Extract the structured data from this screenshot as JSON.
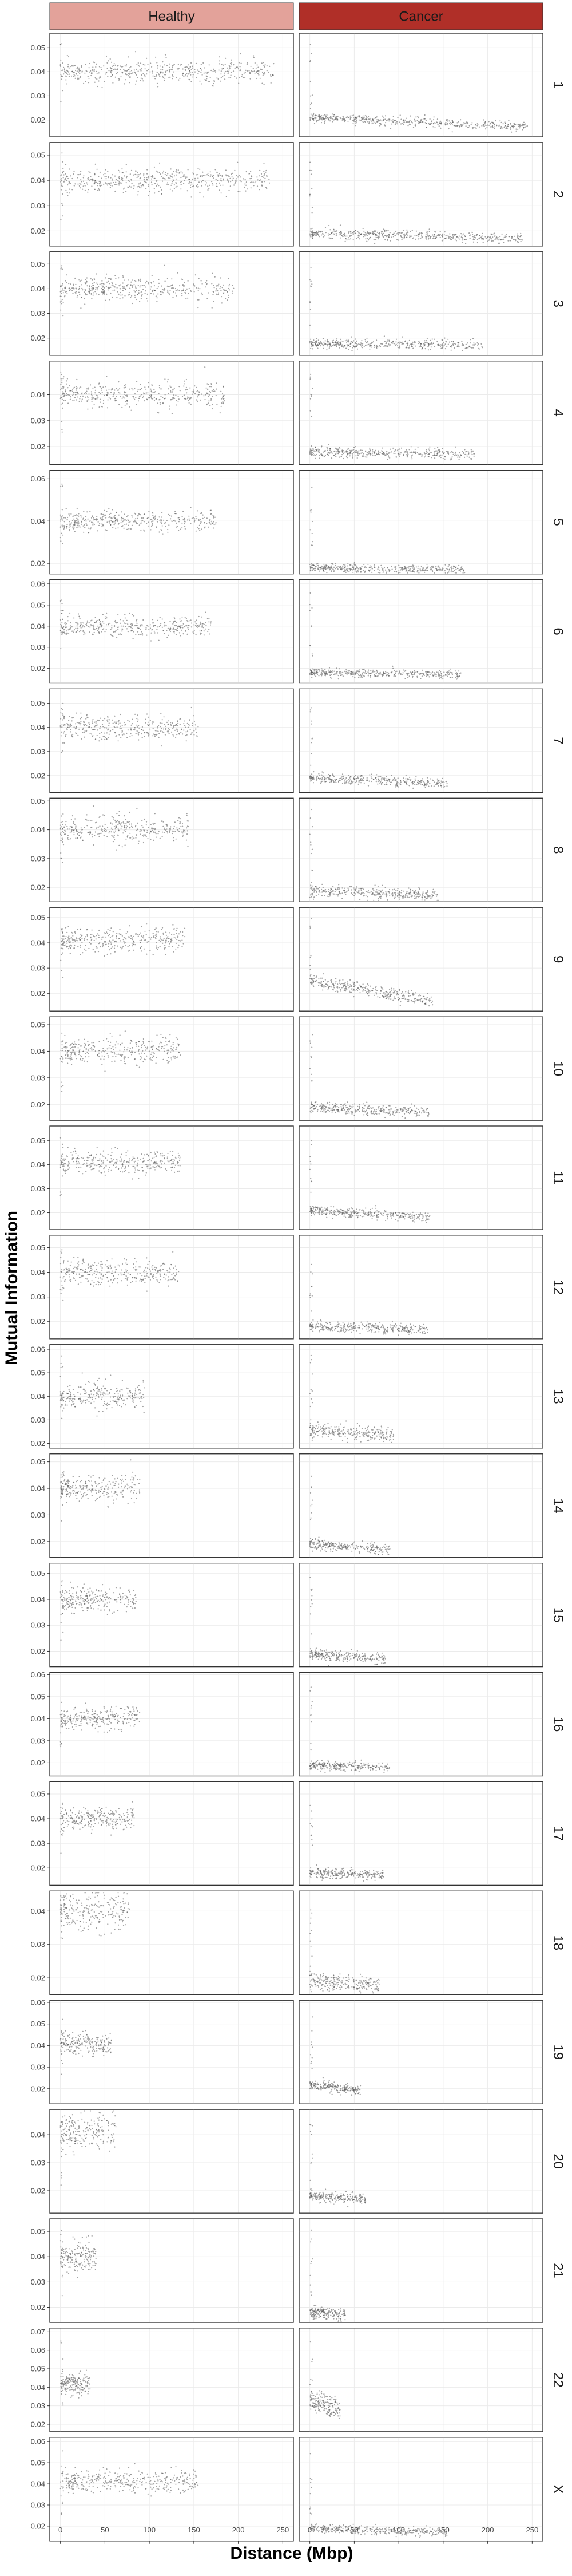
{
  "chart_data": {
    "type": "scatter",
    "xlabel": "Distance (Mbp)",
    "ylabel": "Mutual Information",
    "columns": [
      {
        "name": "Healthy",
        "color": "#e3a29a"
      },
      {
        "name": "Cancer",
        "color": "#b02f28"
      }
    ],
    "xlim": [
      -12,
      262
    ],
    "x_ticks": [
      0,
      50,
      100,
      150,
      200,
      250
    ],
    "point_color": "#555555",
    "grid": true,
    "rows": [
      {
        "label": "1",
        "ylim": [
          0.013,
          0.056
        ],
        "y_ticks": [
          0.02,
          0.03,
          0.04,
          0.05
        ],
        "healthy": {
          "xmax": 240,
          "level": 0.04,
          "spread": 0.0025
        },
        "cancer": {
          "xmax": 245,
          "start": 0.021,
          "end": 0.017,
          "spread": 0.001
        }
      },
      {
        "label": "2",
        "ylim": [
          0.014,
          0.055
        ],
        "y_ticks": [
          0.02,
          0.03,
          0.04,
          0.05
        ],
        "healthy": {
          "xmax": 235,
          "level": 0.04,
          "spread": 0.0025
        },
        "cancer": {
          "xmax": 240,
          "start": 0.019,
          "end": 0.017,
          "spread": 0.001
        }
      },
      {
        "label": "3",
        "ylim": [
          0.013,
          0.055
        ],
        "y_ticks": [
          0.02,
          0.03,
          0.04,
          0.05
        ],
        "healthy": {
          "xmax": 195,
          "level": 0.04,
          "spread": 0.0025
        },
        "cancer": {
          "xmax": 195,
          "start": 0.018,
          "end": 0.017,
          "spread": 0.001
        }
      },
      {
        "label": "4",
        "ylim": [
          0.013,
          0.053
        ],
        "y_ticks": [
          0.02,
          0.03,
          0.04
        ],
        "healthy": {
          "xmax": 185,
          "level": 0.04,
          "spread": 0.0025
        },
        "cancer": {
          "xmax": 185,
          "start": 0.018,
          "end": 0.017,
          "spread": 0.001
        }
      },
      {
        "label": "5",
        "ylim": [
          0.015,
          0.064
        ],
        "y_ticks": [
          0.02,
          0.04,
          0.06
        ],
        "healthy": {
          "xmax": 175,
          "level": 0.04,
          "spread": 0.0025
        },
        "cancer": {
          "xmax": 175,
          "start": 0.018,
          "end": 0.017,
          "spread": 0.001
        }
      },
      {
        "label": "6",
        "ylim": [
          0.013,
          0.062
        ],
        "y_ticks": [
          0.02,
          0.03,
          0.04,
          0.05,
          0.06
        ],
        "healthy": {
          "xmax": 170,
          "level": 0.04,
          "spread": 0.0025
        },
        "cancer": {
          "xmax": 170,
          "start": 0.018,
          "end": 0.017,
          "spread": 0.001
        }
      },
      {
        "label": "7",
        "ylim": [
          0.013,
          0.056
        ],
        "y_ticks": [
          0.02,
          0.03,
          0.04,
          0.05
        ],
        "healthy": {
          "xmax": 155,
          "level": 0.04,
          "spread": 0.0025
        },
        "cancer": {
          "xmax": 155,
          "start": 0.019,
          "end": 0.017,
          "spread": 0.001
        }
      },
      {
        "label": "8",
        "ylim": [
          0.015,
          0.051
        ],
        "y_ticks": [
          0.02,
          0.03,
          0.04,
          0.05
        ],
        "healthy": {
          "xmax": 145,
          "level": 0.04,
          "spread": 0.0025
        },
        "cancer": {
          "xmax": 145,
          "start": 0.019,
          "end": 0.017,
          "spread": 0.001
        }
      },
      {
        "label": "9",
        "ylim": [
          0.013,
          0.054
        ],
        "y_ticks": [
          0.02,
          0.03,
          0.04,
          0.05
        ],
        "healthy": {
          "xmax": 140,
          "level": 0.041,
          "spread": 0.0025
        },
        "cancer": {
          "xmax": 138,
          "start": 0.025,
          "end": 0.017,
          "spread": 0.0013
        }
      },
      {
        "label": "10",
        "ylim": [
          0.014,
          0.053
        ],
        "y_ticks": [
          0.02,
          0.03,
          0.04,
          0.05
        ],
        "healthy": {
          "xmax": 135,
          "level": 0.04,
          "spread": 0.0025
        },
        "cancer": {
          "xmax": 135,
          "start": 0.019,
          "end": 0.017,
          "spread": 0.001
        }
      },
      {
        "label": "11",
        "ylim": [
          0.013,
          0.056
        ],
        "y_ticks": [
          0.02,
          0.03,
          0.04,
          0.05
        ],
        "healthy": {
          "xmax": 135,
          "level": 0.041,
          "spread": 0.0025
        },
        "cancer": {
          "xmax": 135,
          "start": 0.021,
          "end": 0.018,
          "spread": 0.001
        }
      },
      {
        "label": "12",
        "ylim": [
          0.013,
          0.055
        ],
        "y_ticks": [
          0.02,
          0.03,
          0.04,
          0.05
        ],
        "healthy": {
          "xmax": 133,
          "level": 0.04,
          "spread": 0.0025
        },
        "cancer": {
          "xmax": 133,
          "start": 0.018,
          "end": 0.017,
          "spread": 0.001
        }
      },
      {
        "label": "13",
        "ylim": [
          0.018,
          0.062
        ],
        "y_ticks": [
          0.02,
          0.03,
          0.04,
          0.05,
          0.06
        ],
        "healthy": {
          "xmax": 95,
          "level": 0.04,
          "spread": 0.003
        },
        "cancer": {
          "xmax": 95,
          "start": 0.026,
          "end": 0.023,
          "spread": 0.0015
        }
      },
      {
        "label": "14",
        "ylim": [
          0.014,
          0.053
        ],
        "y_ticks": [
          0.02,
          0.03,
          0.04,
          0.05
        ],
        "healthy": {
          "xmax": 90,
          "level": 0.04,
          "spread": 0.0025
        },
        "cancer": {
          "xmax": 90,
          "start": 0.019,
          "end": 0.017,
          "spread": 0.001
        }
      },
      {
        "label": "15",
        "ylim": [
          0.014,
          0.054
        ],
        "y_ticks": [
          0.02,
          0.03,
          0.04,
          0.05
        ],
        "healthy": {
          "xmax": 85,
          "level": 0.04,
          "spread": 0.0025
        },
        "cancer": {
          "xmax": 85,
          "start": 0.019,
          "end": 0.017,
          "spread": 0.001
        }
      },
      {
        "label": "16",
        "ylim": [
          0.014,
          0.061
        ],
        "y_ticks": [
          0.02,
          0.03,
          0.04,
          0.05,
          0.06
        ],
        "healthy": {
          "xmax": 90,
          "level": 0.04,
          "spread": 0.0025
        },
        "cancer": {
          "xmax": 90,
          "start": 0.019,
          "end": 0.018,
          "spread": 0.001
        }
      },
      {
        "label": "17",
        "ylim": [
          0.013,
          0.055
        ],
        "y_ticks": [
          0.02,
          0.03,
          0.04,
          0.05
        ],
        "healthy": {
          "xmax": 83,
          "level": 0.04,
          "spread": 0.0025
        },
        "cancer": {
          "xmax": 83,
          "start": 0.018,
          "end": 0.017,
          "spread": 0.001
        }
      },
      {
        "label": "18",
        "ylim": [
          0.015,
          0.046
        ],
        "y_ticks": [
          0.02,
          0.03,
          0.04
        ],
        "healthy": {
          "xmax": 78,
          "level": 0.04,
          "spread": 0.003
        },
        "cancer": {
          "xmax": 78,
          "start": 0.019,
          "end": 0.018,
          "spread": 0.0012
        }
      },
      {
        "label": "19",
        "ylim": [
          0.013,
          0.061
        ],
        "y_ticks": [
          0.02,
          0.03,
          0.04,
          0.05,
          0.06
        ],
        "healthy": {
          "xmax": 58,
          "level": 0.041,
          "spread": 0.0025
        },
        "cancer": {
          "xmax": 58,
          "start": 0.022,
          "end": 0.019,
          "spread": 0.0012
        }
      },
      {
        "label": "20",
        "ylim": [
          0.012,
          0.049
        ],
        "y_ticks": [
          0.02,
          0.03,
          0.04
        ],
        "healthy": {
          "xmax": 63,
          "level": 0.041,
          "spread": 0.003
        },
        "cancer": {
          "xmax": 63,
          "start": 0.018,
          "end": 0.017,
          "spread": 0.001
        }
      },
      {
        "label": "21",
        "ylim": [
          0.014,
          0.055
        ],
        "y_ticks": [
          0.02,
          0.03,
          0.04,
          0.05
        ],
        "healthy": {
          "xmax": 40,
          "level": 0.04,
          "spread": 0.003
        },
        "cancer": {
          "xmax": 40,
          "start": 0.018,
          "end": 0.017,
          "spread": 0.0012
        }
      },
      {
        "label": "22",
        "ylim": [
          0.016,
          0.072
        ],
        "y_ticks": [
          0.02,
          0.03,
          0.04,
          0.05,
          0.06,
          0.07
        ],
        "healthy": {
          "xmax": 34,
          "level": 0.042,
          "spread": 0.003
        },
        "cancer": {
          "xmax": 34,
          "start": 0.033,
          "end": 0.028,
          "spread": 0.003
        }
      },
      {
        "label": "X",
        "ylim": [
          0.013,
          0.062
        ],
        "y_ticks": [
          0.02,
          0.03,
          0.04,
          0.05,
          0.06
        ],
        "healthy": {
          "xmax": 155,
          "level": 0.041,
          "spread": 0.0028
        },
        "cancer": {
          "xmax": 155,
          "start": 0.019,
          "end": 0.017,
          "spread": 0.001
        }
      }
    ]
  }
}
